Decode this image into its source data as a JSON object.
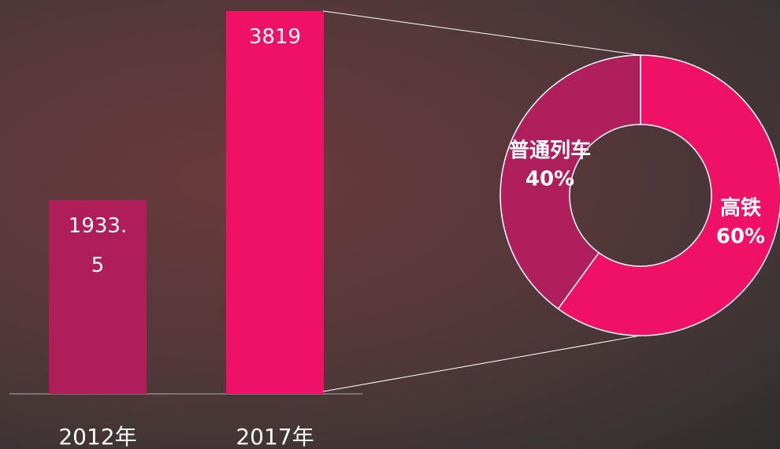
{
  "chart_data": [
    {
      "type": "bar",
      "categories": [
        "2012年",
        "2017年"
      ],
      "values": [
        1933.5,
        3819
      ],
      "colors": [
        "#b01e5a",
        "#ee1166"
      ]
    },
    {
      "type": "donut",
      "categories": [
        "高铁",
        "普通列车"
      ],
      "values": [
        60,
        40
      ],
      "value_labels": [
        "60%",
        "40%"
      ],
      "colors": [
        "#ee1166",
        "#ae1f5b"
      ]
    }
  ]
}
